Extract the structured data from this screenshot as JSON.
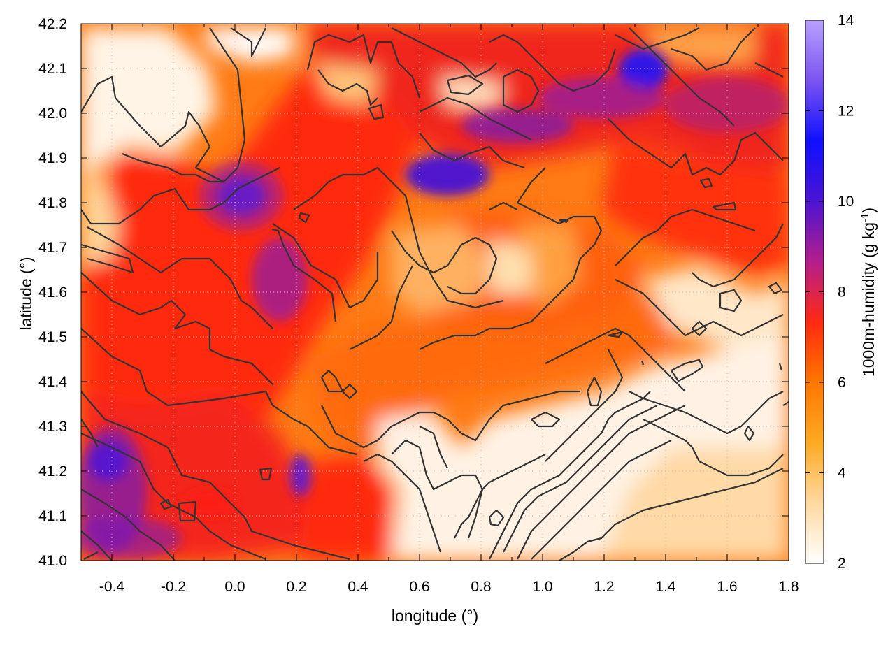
{
  "chart_data": {
    "type": "heatmap",
    "title": "",
    "xlabel": "longitude (°)",
    "ylabel": "latitude (°)",
    "xlim": [
      -0.5,
      1.8
    ],
    "ylim": [
      41.0,
      42.2
    ],
    "xticks": [
      "-0.4",
      "-0.2",
      "0.0",
      "0.2",
      "0.4",
      "0.6",
      "0.8",
      "1.0",
      "1.2",
      "1.4",
      "1.6",
      "1.8"
    ],
    "yticks": [
      "41.0",
      "41.1",
      "41.2",
      "41.3",
      "41.4",
      "41.5",
      "41.6",
      "41.7",
      "41.8",
      "41.9",
      "42.0",
      "42.1",
      "42.2"
    ],
    "grid": true,
    "colorbar": {
      "label": "1000m-humidity (g kg",
      "label_superscript": "-1",
      "label_close": ")",
      "range": [
        2,
        14
      ],
      "ticks": [
        "2",
        "4",
        "6",
        "8",
        "10",
        "12",
        "14"
      ],
      "colors": [
        "#ffffff",
        "#ffd9a0",
        "#ffaa22",
        "#ff7700",
        "#ff2a10",
        "#b41e8c",
        "#4b14d2",
        "#1010ff",
        "#7c54f0",
        "#b8a0ff"
      ]
    },
    "field_description": {
      "moist_core": {
        "lon": [
          -0.5,
          0.5
        ],
        "lat": [
          41.0,
          42.0
        ],
        "value_range": [
          7,
          9
        ]
      },
      "moist_northeast": {
        "lon": [
          0.6,
          1.8
        ],
        "lat": [
          41.8,
          42.2
        ],
        "value_range": [
          7,
          11
        ]
      },
      "maxima": [
        {
          "lon": 0.0,
          "lat": 41.82,
          "value": 11
        },
        {
          "lon": -0.4,
          "lat": 41.2,
          "value": 11
        },
        {
          "lon": 1.32,
          "lat": 42.08,
          "value": 11
        },
        {
          "lon": 0.7,
          "lat": 41.82,
          "value": 10.5
        }
      ],
      "dry_southeast": {
        "lon": [
          0.5,
          1.8
        ],
        "lat": [
          41.0,
          41.45
        ],
        "value_range": [
          2,
          4
        ]
      },
      "dry_northwest": {
        "lon": [
          -0.5,
          -0.2
        ],
        "lat": [
          41.6,
          42.1
        ],
        "value_range": [
          2,
          4
        ]
      }
    },
    "contours": {
      "color": "#333333",
      "description": "terrain contour lines overlaid"
    }
  }
}
